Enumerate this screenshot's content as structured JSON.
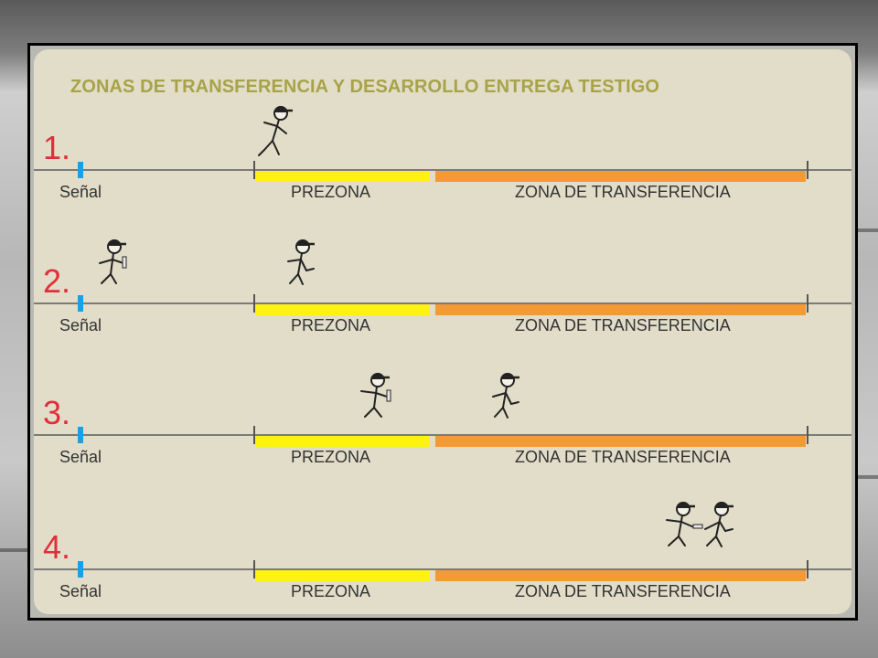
{
  "title": "ZONAS DE TRANSFERENCIA Y DESARROLLO ENTREGA TESTIGO",
  "labels": {
    "signal": "Señal",
    "prezone": "PREZONA",
    "transfer_zone": "ZONA DE TRANSFERENCIA"
  },
  "colors": {
    "title": "#a8a348",
    "step_number": "#e02f3a",
    "signal_marker": "#16a2e4",
    "prezone": "#fff213",
    "transfer_zone": "#f39a35"
  },
  "steps": [
    {
      "number": "1.",
      "runners": [
        "running-without-baton"
      ]
    },
    {
      "number": "2.",
      "runners": [
        "running-with-baton",
        "running-without-baton"
      ]
    },
    {
      "number": "3.",
      "runners": [
        "running-with-baton",
        "running-without-baton"
      ]
    },
    {
      "number": "4.",
      "runners": [
        "passing-baton",
        "receiving-baton"
      ]
    }
  ]
}
